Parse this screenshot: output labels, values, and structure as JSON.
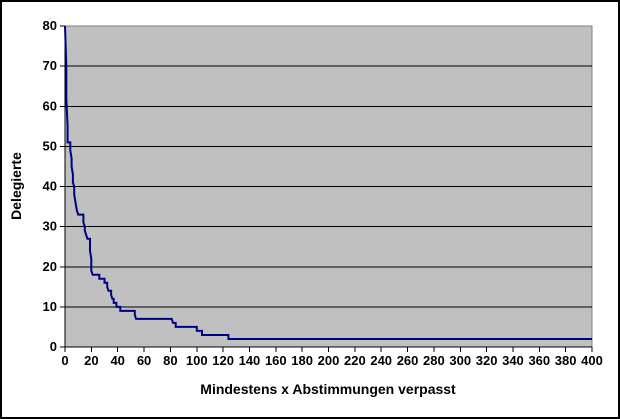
{
  "chart_data": {
    "type": "line",
    "title": "",
    "xlabel": "Mindestens x Abstimmungen verpasst",
    "ylabel": "Delegierte",
    "xlim": [
      0,
      400
    ],
    "ylim": [
      0,
      80
    ],
    "x_ticks": [
      0,
      20,
      40,
      60,
      80,
      100,
      120,
      140,
      160,
      180,
      200,
      220,
      240,
      260,
      280,
      300,
      320,
      340,
      360,
      380,
      400
    ],
    "y_ticks": [
      0,
      10,
      20,
      30,
      40,
      50,
      60,
      70,
      80
    ],
    "grid": "horizontal major gridlines only",
    "legend": "none",
    "colors": {
      "figure_bg": "#FFFFFF",
      "figure_border": "#000000",
      "plot_bg": "#C0C0C0",
      "plot_border": "#808080",
      "gridline": "#000000",
      "axis": "#000000",
      "series_line": "#000080",
      "text": "#000000"
    },
    "line_width": 2,
    "series": [
      {
        "points": [
          [
            0,
            80
          ],
          [
            1,
            70
          ],
          [
            1,
            62
          ],
          [
            2,
            55
          ],
          [
            2,
            51
          ],
          [
            4,
            51
          ],
          [
            4,
            49
          ],
          [
            5,
            47
          ],
          [
            5,
            45
          ],
          [
            6,
            43
          ],
          [
            6,
            41
          ],
          [
            7,
            40
          ],
          [
            7,
            38
          ],
          [
            8,
            36
          ],
          [
            9,
            34
          ],
          [
            10,
            33
          ],
          [
            14,
            33
          ],
          [
            14,
            31
          ],
          [
            15,
            30
          ],
          [
            15,
            29
          ],
          [
            16,
            28
          ],
          [
            17,
            27
          ],
          [
            19,
            27
          ],
          [
            19,
            24
          ],
          [
            20,
            22
          ],
          [
            20,
            19
          ],
          [
            21,
            18
          ],
          [
            26,
            18
          ],
          [
            26,
            17
          ],
          [
            30,
            17
          ],
          [
            30,
            16
          ],
          [
            32,
            16
          ],
          [
            32,
            15
          ],
          [
            33,
            14
          ],
          [
            35,
            14
          ],
          [
            35,
            13
          ],
          [
            36,
            12
          ],
          [
            37,
            12
          ],
          [
            37,
            11
          ],
          [
            39,
            11
          ],
          [
            39,
            10
          ],
          [
            42,
            10
          ],
          [
            42,
            9
          ],
          [
            53,
            9
          ],
          [
            53,
            8
          ],
          [
            54,
            7
          ],
          [
            81,
            7
          ],
          [
            82,
            6
          ],
          [
            84,
            6
          ],
          [
            84,
            5
          ],
          [
            100,
            5
          ],
          [
            100,
            4
          ],
          [
            104,
            4
          ],
          [
            104,
            3
          ],
          [
            124,
            3
          ],
          [
            124,
            2
          ],
          [
            400,
            2
          ]
        ]
      }
    ]
  }
}
